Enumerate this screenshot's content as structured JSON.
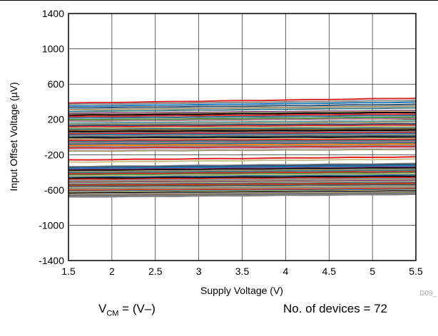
{
  "chart_data": {
    "type": "line",
    "xlabel": "Supply Voltage (V)",
    "ylabel": "Input Offset Voltage (µV)",
    "xlim": [
      1.5,
      5.5
    ],
    "ylim": [
      -1400,
      1400
    ],
    "x_ticks": [
      "1.5",
      "2",
      "2.5",
      "3",
      "3.5",
      "4",
      "4.5",
      "5",
      "5.5"
    ],
    "y_ticks": [
      "1400",
      "1000",
      "600",
      "200",
      "-200",
      "-600",
      "-1000",
      "-1400"
    ],
    "grid": true,
    "series_description": "72 devices, one trace each; offset approximately constant across supply voltage",
    "series": [
      {
        "start": 385,
        "end": 440,
        "color": "#d62728"
      },
      {
        "start": 370,
        "end": 415,
        "color": "#8c8c8c"
      },
      {
        "start": 350,
        "end": 395,
        "color": "#1f77b4"
      },
      {
        "start": 330,
        "end": 370,
        "color": "#2f4f6f"
      },
      {
        "start": 310,
        "end": 350,
        "color": "#a39674"
      },
      {
        "start": 290,
        "end": 330,
        "color": "#3a7a7f"
      },
      {
        "start": 268,
        "end": 300,
        "color": "#7a3c6e"
      },
      {
        "start": 255,
        "end": 290,
        "color": "#c8c08a"
      },
      {
        "start": 248,
        "end": 280,
        "color": "#000000"
      },
      {
        "start": 232,
        "end": 262,
        "color": "#d62728"
      },
      {
        "start": 215,
        "end": 245,
        "color": "#2f6f8f"
      },
      {
        "start": 195,
        "end": 225,
        "color": "#4a8c3a"
      },
      {
        "start": 180,
        "end": 210,
        "color": "#b07a8a"
      },
      {
        "start": 160,
        "end": 185,
        "color": "#5f9ea0"
      },
      {
        "start": 145,
        "end": 170,
        "color": "#a39674"
      },
      {
        "start": 130,
        "end": 150,
        "color": "#2f4f6f"
      },
      {
        "start": 115,
        "end": 135,
        "color": "#d62728"
      },
      {
        "start": 100,
        "end": 122,
        "color": "#c8c08a"
      },
      {
        "start": 88,
        "end": 105,
        "color": "#3a7a7f"
      },
      {
        "start": 74,
        "end": 92,
        "color": "#8b5a2b"
      },
      {
        "start": 60,
        "end": 78,
        "color": "#000000"
      },
      {
        "start": 48,
        "end": 62,
        "color": "#7f7f7f"
      },
      {
        "start": 36,
        "end": 50,
        "color": "#d62728"
      },
      {
        "start": 24,
        "end": 38,
        "color": "#1f77b4"
      },
      {
        "start": 12,
        "end": 25,
        "color": "#a39674"
      },
      {
        "start": 0,
        "end": 12,
        "color": "#2f4f6f"
      },
      {
        "start": -12,
        "end": -2,
        "color": "#000000"
      },
      {
        "start": -24,
        "end": -14,
        "color": "#c8c08a"
      },
      {
        "start": -38,
        "end": -26,
        "color": "#d62728"
      },
      {
        "start": -52,
        "end": -40,
        "color": "#3a7a7f"
      },
      {
        "start": -66,
        "end": -54,
        "color": "#b07a8a"
      },
      {
        "start": -80,
        "end": -66,
        "color": "#2f6f8f"
      },
      {
        "start": -95,
        "end": -80,
        "color": "#ff7f0e"
      },
      {
        "start": -110,
        "end": -95,
        "color": "#8c8c8c"
      },
      {
        "start": -125,
        "end": -108,
        "color": "#d62728"
      },
      {
        "start": -140,
        "end": -122,
        "color": "#c8b4c8"
      },
      {
        "start": -160,
        "end": -140,
        "color": "#a39674"
      },
      {
        "start": -260,
        "end": -225,
        "color": "#e02020"
      },
      {
        "start": -285,
        "end": -250,
        "color": "#c8c08a"
      },
      {
        "start": -335,
        "end": -300,
        "color": "#8c8c8c"
      },
      {
        "start": -345,
        "end": -310,
        "color": "#2f4f6f"
      },
      {
        "start": -355,
        "end": -325,
        "color": "#1f77b4"
      },
      {
        "start": -370,
        "end": -340,
        "color": "#7a3c6e"
      },
      {
        "start": -380,
        "end": -350,
        "color": "#000000"
      },
      {
        "start": -392,
        "end": -362,
        "color": "#a39674"
      },
      {
        "start": -405,
        "end": -375,
        "color": "#3a7a7f"
      },
      {
        "start": -418,
        "end": -392,
        "color": "#d62728"
      },
      {
        "start": -430,
        "end": -405,
        "color": "#4a8c3a"
      },
      {
        "start": -442,
        "end": -418,
        "color": "#c8c08a"
      },
      {
        "start": -455,
        "end": -430,
        "color": "#2f6f8f"
      },
      {
        "start": -468,
        "end": -445,
        "color": "#000000"
      },
      {
        "start": -480,
        "end": -458,
        "color": "#d62728"
      },
      {
        "start": -492,
        "end": -470,
        "color": "#8c8c8c"
      },
      {
        "start": -505,
        "end": -483,
        "color": "#a39674"
      },
      {
        "start": -515,
        "end": -495,
        "color": "#7a3c6e"
      },
      {
        "start": -525,
        "end": -505,
        "color": "#c8c08a"
      },
      {
        "start": -535,
        "end": -515,
        "color": "#3a7a7f"
      },
      {
        "start": -545,
        "end": -525,
        "color": "#d62728"
      },
      {
        "start": -555,
        "end": -535,
        "color": "#8b5a2b"
      },
      {
        "start": -565,
        "end": -545,
        "color": "#2f4f6f"
      },
      {
        "start": -575,
        "end": -555,
        "color": "#c8c08a"
      },
      {
        "start": -585,
        "end": -565,
        "color": "#7f7f7f"
      },
      {
        "start": -595,
        "end": -575,
        "color": "#a39674"
      },
      {
        "start": -605,
        "end": -585,
        "color": "#d62728"
      },
      {
        "start": -615,
        "end": -595,
        "color": "#3a7a7f"
      },
      {
        "start": -625,
        "end": -605,
        "color": "#c8c08a"
      },
      {
        "start": -635,
        "end": -612,
        "color": "#000000"
      },
      {
        "start": -645,
        "end": -620,
        "color": "#8c8c8c"
      },
      {
        "start": -655,
        "end": -628,
        "color": "#a39674"
      },
      {
        "start": -665,
        "end": -636,
        "color": "#5f5f5f"
      },
      {
        "start": -672,
        "end": -642,
        "color": "#7f7f7f"
      },
      {
        "start": -680,
        "end": -650,
        "color": "#808080"
      }
    ]
  },
  "figure_code": "D09_",
  "notes": {
    "vcm_main": "V",
    "vcm_sub": "CM",
    "vcm_rest": " = (V–)",
    "devices": "No. of devices = 72"
  }
}
